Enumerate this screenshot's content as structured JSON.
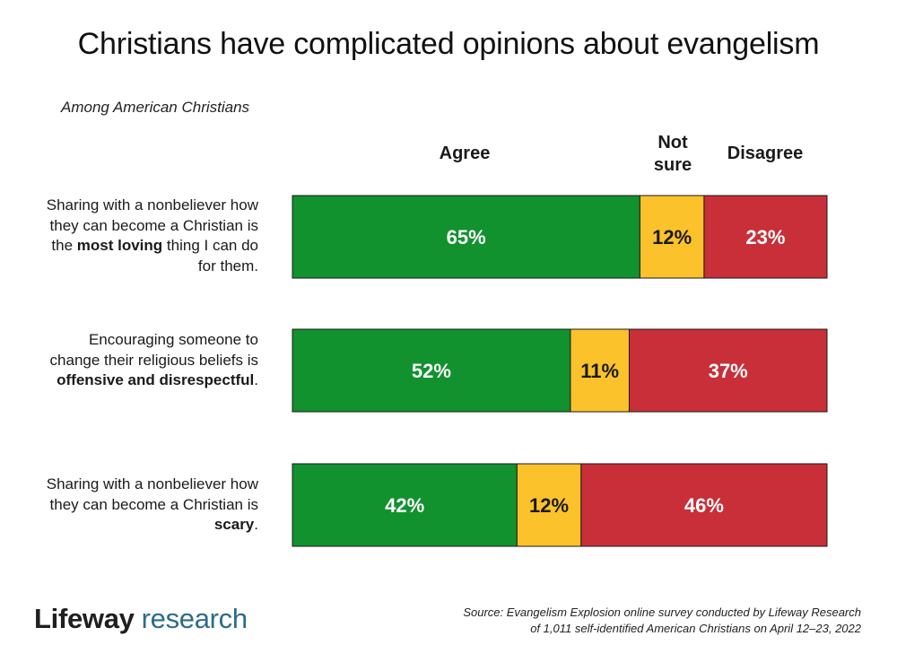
{
  "title": "Christians have complicated opinions about evangelism",
  "subtitle": "Among American Christians",
  "headers": {
    "agree": "Agree",
    "not_sure_line1": "Not",
    "not_sure_line2": "sure",
    "disagree": "Disagree"
  },
  "rows": [
    {
      "label_pre": "Sharing with a nonbeliever how they can become a Christian is the ",
      "label_bold": "most loving",
      "label_post": " thing I can do for them."
    },
    {
      "label_pre": "Encouraging someone to change their religious beliefs is ",
      "label_bold": "offensive and disrespectful",
      "label_post": "."
    },
    {
      "label_pre": "Sharing with a nonbeliever how they can become a Christian is ",
      "label_bold": "scary",
      "label_post": "."
    }
  ],
  "chart_data": {
    "type": "bar",
    "orientation": "horizontal",
    "stacked": true,
    "normalized_percent": true,
    "categories": [
      "Sharing with a nonbeliever how they can become a Christian is the most loving thing I can do for them.",
      "Encouraging someone to change their religious beliefs is offensive and disrespectful.",
      "Sharing with a nonbeliever how they can become a Christian is scary."
    ],
    "series": [
      {
        "name": "Agree",
        "values": [
          65,
          52,
          42
        ],
        "labels": [
          "65%",
          "52%",
          "42%"
        ],
        "color": "#12912f"
      },
      {
        "name": "Not sure",
        "values": [
          12,
          11,
          12
        ],
        "labels": [
          "12%",
          "11%",
          "12%"
        ],
        "color": "#fbc22b"
      },
      {
        "name": "Disagree",
        "values": [
          23,
          37,
          46
        ],
        "labels": [
          "23%",
          "37%",
          "46%"
        ],
        "color": "#c82f38"
      }
    ],
    "xlim": [
      0,
      100
    ],
    "title": "Christians have complicated opinions about evangelism",
    "subtitle": "Among American Christians"
  },
  "colors": {
    "agree": "#12912f",
    "not_sure": "#fbc22b",
    "disagree": "#c82f38",
    "label_on_dark": "#ffffff",
    "label_on_light": "#1a1a1a",
    "logo_accent": "#2d6b8a"
  },
  "logo": {
    "part1": "Lifeway",
    "part2": "research"
  },
  "source": {
    "line1": "Source: Evangelism Explosion online survey conducted by Lifeway Research",
    "line2": "of 1,011 self-identified American Christians on April 12–23, 2022"
  }
}
